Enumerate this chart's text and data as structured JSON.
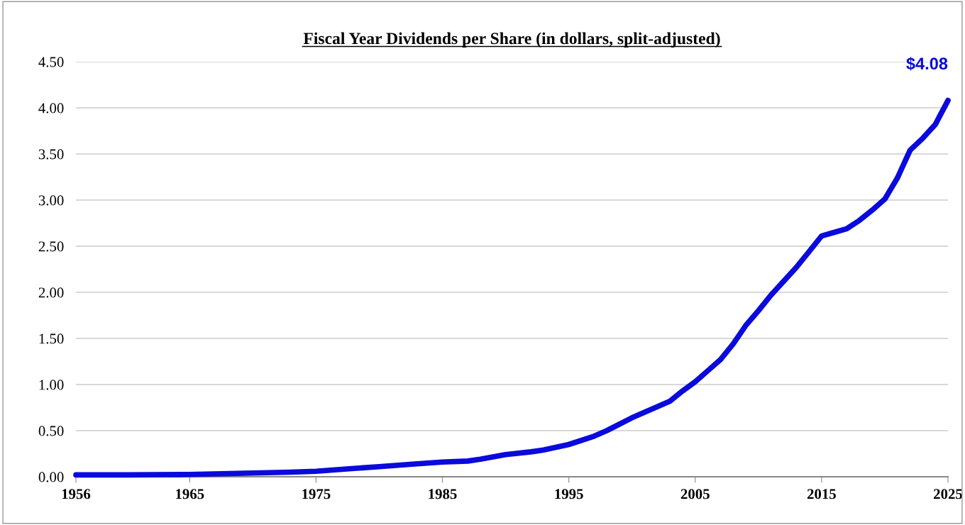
{
  "chart_data": {
    "type": "line",
    "title": "Fiscal Year Dividends per Share (in dollars, split-adjusted)",
    "x": [
      1956,
      1960,
      1965,
      1970,
      1973,
      1975,
      1978,
      1980,
      1983,
      1985,
      1987,
      1988,
      1990,
      1992,
      1993,
      1995,
      1997,
      1998,
      2000,
      2002,
      2003,
      2004,
      2005,
      2006,
      2007,
      2008,
      2009,
      2010,
      2011,
      2012,
      2013,
      2014,
      2015,
      2016,
      2017,
      2018,
      2019,
      2020,
      2021,
      2022,
      2023,
      2024,
      2025
    ],
    "series": [
      {
        "color": "#0a0adc",
        "values": [
          0.02,
          0.02,
          0.025,
          0.04,
          0.05,
          0.06,
          0.09,
          0.11,
          0.14,
          0.16,
          0.17,
          0.19,
          0.24,
          0.27,
          0.29,
          0.35,
          0.44,
          0.5,
          0.64,
          0.76,
          0.82,
          0.93,
          1.03,
          1.15,
          1.27,
          1.44,
          1.64,
          1.8,
          1.97,
          2.12,
          2.27,
          2.44,
          2.61,
          2.65,
          2.69,
          2.78,
          2.89,
          3.01,
          3.24,
          3.54,
          3.67,
          3.82,
          4.08
        ]
      }
    ],
    "xlim": [
      1956,
      2025
    ],
    "xticks": [
      1956,
      1965,
      1975,
      1985,
      1995,
      2005,
      2015,
      2025
    ],
    "ylim": [
      0,
      4.5
    ],
    "yticks": [
      {
        "value": 0,
        "label": "0.00"
      },
      {
        "value": 0.5,
        "label": "0.50"
      },
      {
        "value": 1,
        "label": "1.00"
      },
      {
        "value": 1.5,
        "label": "1.50"
      },
      {
        "value": 2,
        "label": "2.00"
      },
      {
        "value": 2.5,
        "label": "2.50"
      },
      {
        "value": 3,
        "label": "3.00"
      },
      {
        "value": 3.5,
        "label": "3.50"
      },
      {
        "value": 4,
        "label": "4.00"
      },
      {
        "value": 4.5,
        "label": "4.50"
      }
    ],
    "grid": "y",
    "marker": "none",
    "line_style": "solid",
    "annotations": [
      {
        "text": "$4.08",
        "x": 2025,
        "y": 4.08
      }
    ]
  }
}
